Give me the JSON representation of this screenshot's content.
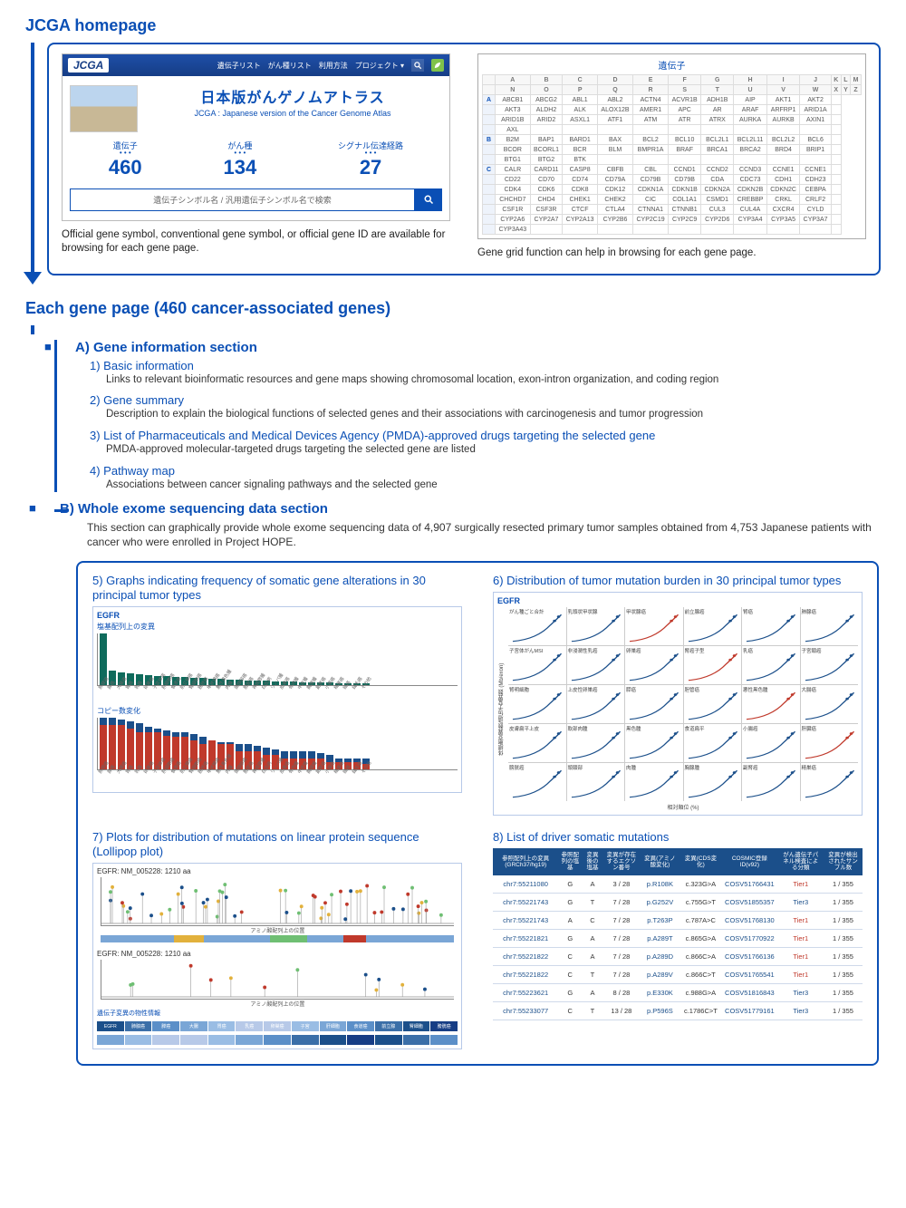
{
  "titles": {
    "homepage": "JCGA homepage",
    "each_gene": "Each gene page (460 cancer-associated genes)"
  },
  "top_panel": {
    "caption_left": "Official gene symbol, conventional gene symbol, or official gene ID are available for browsing for each gene page.",
    "caption_right": "Gene grid function can help in browsing for each gene page."
  },
  "hero": {
    "logo": "JCGA",
    "nav": [
      "遺伝子リスト",
      "がん種リスト",
      "利用方法",
      "プロジェクト ▾"
    ],
    "jp_title": "日本版がんゲノムアトラス",
    "en_sub": "JCGA : Japanese version of the Cancer Genome Atlas",
    "stats": [
      {
        "label": "遺伝子",
        "value": "460"
      },
      {
        "label": "がん種",
        "value": "134"
      },
      {
        "label": "シグナル伝達経路",
        "value": "27"
      }
    ],
    "search_placeholder": "遺伝子シンボル名 / 汎用遺伝子シンボル名で検索"
  },
  "gene_grid": {
    "title": "遺伝子",
    "head1": [
      "",
      "A",
      "B",
      "C",
      "D",
      "E",
      "F",
      "G",
      "H",
      "I",
      "J",
      "K",
      "L",
      "M"
    ],
    "head2": [
      "",
      "N",
      "O",
      "P",
      "Q",
      "R",
      "S",
      "T",
      "U",
      "V",
      "W",
      "X",
      "Y",
      "Z"
    ],
    "rows": [
      {
        "h": "A",
        "cells": [
          "ABCB1",
          "ABCG2",
          "ABL1",
          "ABL2",
          "ACTN4",
          "ACVR1B",
          "ADH1B",
          "AIP",
          "AKT1",
          "AKT2",
          ""
        ]
      },
      {
        "h": "",
        "cells": [
          "AKT3",
          "ALDH2",
          "ALK",
          "ALOX12B",
          "AMER1",
          "APC",
          "AR",
          "ARAF",
          "ARFRP1",
          "ARID1A",
          ""
        ]
      },
      {
        "h": "",
        "cells": [
          "ARID1B",
          "ARID2",
          "ASXL1",
          "ATF1",
          "ATM",
          "ATR",
          "ATRX",
          "AURKA",
          "AURKB",
          "AXIN1",
          ""
        ]
      },
      {
        "h": "",
        "cells": [
          "AXL",
          "",
          "",
          "",
          "",
          "",
          "",
          "",
          "",
          "",
          ""
        ]
      },
      {
        "h": "B",
        "cells": [
          "B2M",
          "BAP1",
          "BARD1",
          "BAX",
          "BCL2",
          "BCL10",
          "BCL2L1",
          "BCL2L11",
          "BCL2L2",
          "BCL6",
          ""
        ]
      },
      {
        "h": "",
        "cells": [
          "BCOR",
          "BCORL1",
          "BCR",
          "BLM",
          "BMPR1A",
          "BRAF",
          "BRCA1",
          "BRCA2",
          "BRD4",
          "BRIP1",
          ""
        ]
      },
      {
        "h": "",
        "cells": [
          "BTG1",
          "BTG2",
          "BTK",
          "",
          "",
          "",
          "",
          "",
          "",
          "",
          ""
        ]
      },
      {
        "h": "C",
        "cells": [
          "CALR",
          "CARD11",
          "CASP8",
          "CBFB",
          "CBL",
          "CCND1",
          "CCND2",
          "CCND3",
          "CCNE1",
          "CCNE1",
          ""
        ]
      },
      {
        "h": "",
        "cells": [
          "CD22",
          "CD70",
          "CD74",
          "CD79A",
          "CD79B",
          "CD79B",
          "CDA",
          "CDC73",
          "CDH1",
          "CDH23",
          ""
        ]
      },
      {
        "h": "",
        "cells": [
          "CDK4",
          "CDK6",
          "CDK8",
          "CDK12",
          "CDKN1A",
          "CDKN1B",
          "CDKN2A",
          "CDKN2B",
          "CDKN2C",
          "CEBPA",
          ""
        ]
      },
      {
        "h": "",
        "cells": [
          "CHCHD7",
          "CHD4",
          "CHEK1",
          "CHEK2",
          "CIC",
          "COL1A1",
          "CSMD1",
          "CREBBP",
          "CRKL",
          "CRLF2",
          ""
        ]
      },
      {
        "h": "",
        "cells": [
          "CSF1R",
          "CSF3R",
          "CTCF",
          "CTLA4",
          "CTNNA1",
          "CTNNB1",
          "CUL3",
          "CUL4A",
          "CXCR4",
          "CYLD",
          ""
        ]
      },
      {
        "h": "",
        "cells": [
          "CYP2A6",
          "CYP2A7",
          "CYP2A13",
          "CYP2B6",
          "CYP2C19",
          "CYP2C9",
          "CYP2D6",
          "CYP3A4",
          "CYP3A5",
          "CYP3A7",
          ""
        ]
      },
      {
        "h": "",
        "cells": [
          "CYP3A43",
          "",
          "",
          "",
          "",
          "",
          "",
          "",
          "",
          "",
          ""
        ]
      }
    ]
  },
  "sectionA": {
    "head": "A) Gene information section",
    "items": [
      {
        "t": "1) Basic information",
        "d": "Links to relevant bioinformatic resources and gene maps showing chromosomal location, exon-intron organization, and coding region"
      },
      {
        "t": "2) Gene summary",
        "d": "Description to explain the biological functions of selected genes and their associations with carcinogenesis and tumor progression"
      },
      {
        "t": "3) List of  Pharmaceuticals and Medical Devices Agency (PMDA)-approved drugs targeting the selected gene",
        "d": "PMDA-approved molecular-targeted drugs targeting the selected gene are listed"
      },
      {
        "t": "4) Pathway map",
        "d": "Associations between cancer signaling pathways and the selected gene"
      }
    ]
  },
  "sectionB": {
    "head": "B) Whole exome sequencing data section",
    "desc": "This section can graphically provide whole exome sequencing data of 4,907 surgically resected primary tumor samples obtained from 4,753 Japanese patients with cancer who were enrolled in Project HOPE.",
    "cells": {
      "c5": "5) Graphs indicating frequency of somatic gene alterations in 30 principal tumor types",
      "c6": "6) Distribution of tumor mutation burden in 30 principal tumor types",
      "c7": "7) Plots for distribution of mutations on linear protein sequence (Lollipop plot)",
      "c8": "8) List of driver somatic mutations"
    }
  },
  "chart5": {
    "gene": "EGFR",
    "top_title": "塩基配列上の変異",
    "top_values": [
      58,
      16,
      14,
      13,
      12,
      11,
      10,
      10,
      9,
      9,
      8,
      8,
      7,
      7,
      6,
      6,
      5,
      5,
      5,
      4,
      4,
      4,
      3,
      3,
      3,
      3,
      2,
      2,
      2,
      2
    ],
    "bottom_title": "コピー数変化",
    "bottom_red": [
      24,
      24,
      24,
      22,
      20,
      20,
      20,
      18,
      18,
      18,
      16,
      14,
      16,
      14,
      14,
      10,
      10,
      10,
      8,
      8,
      6,
      6,
      6,
      6,
      6,
      4,
      4,
      4,
      4,
      3
    ],
    "bottom_blue": [
      4,
      4,
      3,
      4,
      5,
      3,
      2,
      3,
      2,
      2,
      3,
      4,
      0,
      1,
      1,
      4,
      4,
      3,
      4,
      3,
      4,
      4,
      4,
      4,
      3,
      4,
      2,
      2,
      2,
      3
    ],
    "tumor_labels": [
      "肺腺癌",
      "膵癌",
      "大腸癌",
      "胃癌",
      "乳癌",
      "卵巣癌",
      "子宮体癌",
      "肝細胞癌",
      "食道癌",
      "前立腺癌",
      "腎細胞癌",
      "膀胱癌",
      "甲状腺癌",
      "悪性黒色腫",
      "肉腫",
      "頭頸部癌",
      "胆管癌",
      "神経膠腫",
      "白血病",
      "リンパ腫",
      "皮膚癌",
      "骨肉腫",
      "中皮腫",
      "胸腺腫",
      "副腎癌",
      "小腸癌",
      "精巣癌",
      "眼癌",
      "絨毛癌",
      "その他"
    ]
  },
  "chart6": {
    "gene": "EGFR",
    "cells": [
      "がん種ごと合計",
      "乳頭状甲状腺",
      "甲状腺癌",
      "前立腺癌",
      "腎癌",
      "肺腺癌",
      "子宮体がんMSI",
      "非浸潤性乳癌",
      "卵巣癌",
      "腎癌子型",
      "乳癌",
      "子宮頸癌",
      "腎明細胞",
      "上皮性卵巣癌",
      "膵癌",
      "胆管癌",
      "悪性黒色腫",
      "大腸癌",
      "皮膚扁平上皮",
      "軟部肉腫",
      "黒色腫",
      "食道扁平",
      "小腸癌",
      "肝臓癌",
      "膀胱癌",
      "頭頸部",
      "肉腫",
      "胸腺腫",
      "副腎癌",
      "精巣癌"
    ],
    "x_axis": "相対順位 (%)",
    "y_axis": "体細胞変異数/遺伝子変異数 (Mb/exon)"
  },
  "chart7": {
    "header1": "EGFR: NM_005228: 1210 aa",
    "header2": "EGFR: NM_005228: 1210 aa",
    "axis": "アミノ酸配列上の位置",
    "legend_title": "遺伝子変異の物性情報",
    "heat_labels": [
      "EGFR",
      "肺腺癌",
      "膵癌",
      "大腸",
      "胃癌",
      "乳癌",
      "卵巣癌",
      "子宮",
      "肝細胞",
      "食道癌",
      "前立腺",
      "腎細胞",
      "膀胱癌"
    ]
  },
  "driver": {
    "headers": [
      "参照配列上の変異(GRCh37/hg19)",
      "参照配列の塩基",
      "変異後の塩基",
      "変異が存在するエクソン番号",
      "変異(アミノ酸変化)",
      "変異(CDS変化)",
      "COSMIC登録ID(v92)",
      "がん遺伝子パネル検査による分類",
      "変異が検出されたサンプル数"
    ],
    "rows": [
      {
        "loc": "chr7:55211080",
        "ref": "G",
        "alt": "A",
        "ex": "3 / 28",
        "aa": "p.R108K",
        "cds": "c.323G>A",
        "cos": "COSV51766431",
        "tier": "Tier1",
        "n": "1 / 355"
      },
      {
        "loc": "chr7:55221743",
        "ref": "G",
        "alt": "T",
        "ex": "7 / 28",
        "aa": "p.G252V",
        "cds": "c.755G>T",
        "cos": "COSV51855357",
        "tier": "Tier3",
        "n": "1 / 355"
      },
      {
        "loc": "chr7:55221743",
        "ref": "A",
        "alt": "C",
        "ex": "7 / 28",
        "aa": "p.T263P",
        "cds": "c.787A>C",
        "cos": "COSV51768130",
        "tier": "Tier1",
        "n": "1 / 355"
      },
      {
        "loc": "chr7:55221821",
        "ref": "G",
        "alt": "A",
        "ex": "7 / 28",
        "aa": "p.A289T",
        "cds": "c.865G>A",
        "cos": "COSV51770922",
        "tier": "Tier1",
        "n": "1 / 355"
      },
      {
        "loc": "chr7:55221822",
        "ref": "C",
        "alt": "A",
        "ex": "7 / 28",
        "aa": "p.A289D",
        "cds": "c.866C>A",
        "cos": "COSV51766136",
        "tier": "Tier1",
        "n": "1 / 355"
      },
      {
        "loc": "chr7:55221822",
        "ref": "C",
        "alt": "T",
        "ex": "7 / 28",
        "aa": "p.A289V",
        "cds": "c.866C>T",
        "cos": "COSV51765541",
        "tier": "Tier1",
        "n": "1 / 355"
      },
      {
        "loc": "chr7:55223621",
        "ref": "G",
        "alt": "A",
        "ex": "8 / 28",
        "aa": "p.E330K",
        "cds": "c.988G>A",
        "cos": "COSV51816843",
        "tier": "Tier3",
        "n": "1 / 355"
      },
      {
        "loc": "chr7:55233077",
        "ref": "C",
        "alt": "T",
        "ex": "13 / 28",
        "aa": "p.P596S",
        "cds": "c.1786C>T",
        "cos": "COSV51779161",
        "tier": "Tier3",
        "n": "1 / 355"
      }
    ]
  }
}
